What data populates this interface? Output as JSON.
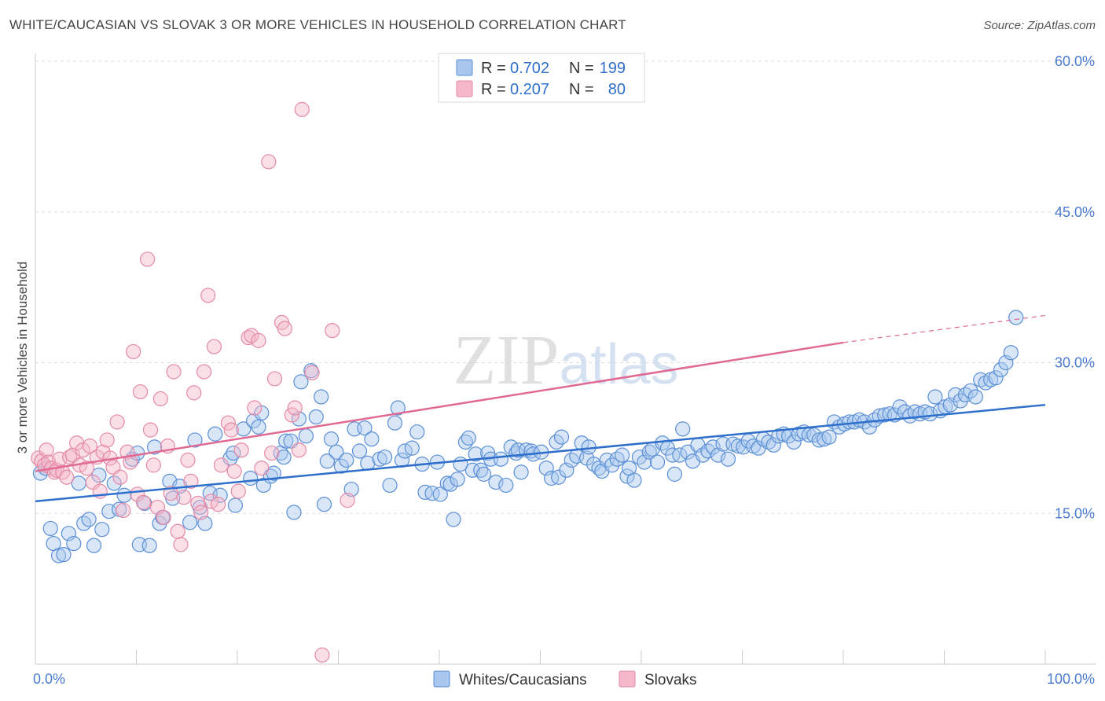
{
  "header": {
    "title": "WHITE/CAUCASIAN VS SLOVAK 3 OR MORE VEHICLES IN HOUSEHOLD CORRELATION CHART",
    "source": "Source: ZipAtlas.com"
  },
  "chart_data": {
    "type": "scatter",
    "title": "WHITE/CAUCASIAN VS SLOVAK 3 OR MORE VEHICLES IN HOUSEHOLD CORRELATION CHART",
    "ylabel": "3 or more Vehicles in Household",
    "xlabel": "",
    "xlim": [
      0,
      100
    ],
    "ylim": [
      0,
      60
    ],
    "x_ticks": [
      "0.0%",
      "100.0%"
    ],
    "y_ticks": [
      {
        "value": 15,
        "label": "15.0%"
      },
      {
        "value": 30,
        "label": "30.0%"
      },
      {
        "value": 45,
        "label": "45.0%"
      },
      {
        "value": 60,
        "label": "60.0%"
      }
    ],
    "grid": true,
    "legend_position": "top-center",
    "watermark": "ZIPatlas",
    "colors": {
      "blue_fill": "#a9c7ee",
      "blue_stroke": "#5b8fd6",
      "blue_line": "#2f6fcc",
      "pink_fill": "#f5b8ca",
      "pink_stroke": "#e48aa6",
      "pink_line": "#e06a94",
      "value_text": "#2f6fcc"
    },
    "legend": [
      {
        "name": "Whites/Caucasians",
        "r_label": "R =",
        "r": "0.702",
        "n_label": "N =",
        "n": "199"
      },
      {
        "name": "Slovaks",
        "r_label": "R =",
        "r": "0.207",
        "n_label": "N =",
        "n": "80"
      }
    ],
    "series": [
      {
        "name": "Whites/Caucasians",
        "trend": {
          "x0": 0,
          "y0": 16.2,
          "x1": 100,
          "y1": 25.8
        },
        "points": [
          [
            0.5,
            19
          ],
          [
            1,
            19.5
          ],
          [
            1.5,
            13.5
          ],
          [
            1.8,
            12
          ],
          [
            2.3,
            10.8
          ],
          [
            2.8,
            10.9
          ],
          [
            3.3,
            13
          ],
          [
            3.8,
            12
          ],
          [
            4.3,
            18
          ],
          [
            4.8,
            14
          ],
          [
            5.3,
            14.4
          ],
          [
            5.8,
            11.8
          ],
          [
            6.3,
            18.8
          ],
          [
            6.6,
            13.4
          ],
          [
            7.3,
            15.2
          ],
          [
            7.8,
            18
          ],
          [
            8.3,
            15.4
          ],
          [
            8.8,
            16.8
          ],
          [
            9.6,
            20.4
          ],
          [
            10.1,
            21
          ],
          [
            10.3,
            11.9
          ],
          [
            10.8,
            16
          ],
          [
            11.3,
            11.8
          ],
          [
            11.8,
            21.6
          ],
          [
            12.3,
            14
          ],
          [
            12.6,
            14.6
          ],
          [
            13.3,
            18.2
          ],
          [
            13.6,
            16.5
          ],
          [
            14.3,
            17.7
          ],
          [
            15.3,
            14.1
          ],
          [
            15.8,
            22.3
          ],
          [
            16.3,
            15.6
          ],
          [
            16.8,
            14
          ],
          [
            17.3,
            17
          ],
          [
            17.8,
            22.9
          ],
          [
            18.3,
            16.8
          ],
          [
            19.3,
            20.5
          ],
          [
            19.6,
            21
          ],
          [
            19.8,
            15.8
          ],
          [
            20.6,
            23.4
          ],
          [
            21.3,
            18.5
          ],
          [
            21.6,
            24.2
          ],
          [
            22.1,
            23.6
          ],
          [
            22.4,
            25
          ],
          [
            22.6,
            17.8
          ],
          [
            23.3,
            18.7
          ],
          [
            23.6,
            19
          ],
          [
            24.3,
            21
          ],
          [
            24.6,
            20.6
          ],
          [
            24.8,
            22.2
          ],
          [
            25.3,
            22.2
          ],
          [
            25.6,
            15.1
          ],
          [
            26.1,
            24.4
          ],
          [
            26.3,
            28.1
          ],
          [
            26.8,
            22.7
          ],
          [
            27.3,
            29.2
          ],
          [
            27.8,
            24.6
          ],
          [
            28.3,
            26.6
          ],
          [
            28.6,
            15.9
          ],
          [
            28.9,
            20.2
          ],
          [
            29.3,
            22.4
          ],
          [
            29.8,
            21.1
          ],
          [
            30.3,
            19.7
          ],
          [
            30.8,
            20.3
          ],
          [
            31.3,
            17.4
          ],
          [
            31.6,
            23.4
          ],
          [
            32.1,
            21.2
          ],
          [
            32.6,
            23.5
          ],
          [
            32.9,
            20
          ],
          [
            33.3,
            22.4
          ],
          [
            34.1,
            20.4
          ],
          [
            34.6,
            20.6
          ],
          [
            35.1,
            17.8
          ],
          [
            35.6,
            24
          ],
          [
            35.9,
            25.5
          ],
          [
            36.3,
            20.3
          ],
          [
            36.6,
            21.2
          ],
          [
            37.3,
            21.5
          ],
          [
            37.8,
            23.1
          ],
          [
            38.3,
            19.9
          ],
          [
            38.6,
            17.1
          ],
          [
            39.3,
            17
          ],
          [
            39.8,
            20.1
          ],
          [
            40.1,
            16.9
          ],
          [
            40.8,
            18
          ],
          [
            41.1,
            17.9
          ],
          [
            41.4,
            14.4
          ],
          [
            41.8,
            18.4
          ],
          [
            42.1,
            19.9
          ],
          [
            42.6,
            22.1
          ],
          [
            42.9,
            22.5
          ],
          [
            43.3,
            19.3
          ],
          [
            43.6,
            20.9
          ],
          [
            44.1,
            19.3
          ],
          [
            44.4,
            18.9
          ],
          [
            44.8,
            21
          ],
          [
            45.1,
            20.4
          ],
          [
            45.6,
            18.1
          ],
          [
            46.1,
            20.4
          ],
          [
            46.6,
            17.8
          ],
          [
            47.1,
            21.6
          ],
          [
            47.6,
            21
          ],
          [
            47.8,
            21.3
          ],
          [
            48.1,
            19.1
          ],
          [
            48.6,
            21.3
          ],
          [
            49.1,
            21.2
          ],
          [
            49.3,
            20.9
          ],
          [
            50.1,
            21.1
          ],
          [
            50.6,
            19.5
          ],
          [
            51.1,
            18.5
          ],
          [
            51.6,
            22.1
          ],
          [
            51.8,
            18.6
          ],
          [
            52.1,
            22.6
          ],
          [
            52.6,
            19.3
          ],
          [
            53.1,
            20.3
          ],
          [
            53.6,
            20.7
          ],
          [
            54.1,
            22
          ],
          [
            54.6,
            20.5
          ],
          [
            54.8,
            21.6
          ],
          [
            55.3,
            19.9
          ],
          [
            55.8,
            19.5
          ],
          [
            56.1,
            19.2
          ],
          [
            56.6,
            20.3
          ],
          [
            57.1,
            19.8
          ],
          [
            57.6,
            20.4
          ],
          [
            58.1,
            20.8
          ],
          [
            58.6,
            18.7
          ],
          [
            58.8,
            19.5
          ],
          [
            59.3,
            18.3
          ],
          [
            59.8,
            20.6
          ],
          [
            60.3,
            20.1
          ],
          [
            60.8,
            21.1
          ],
          [
            61.1,
            21.4
          ],
          [
            61.6,
            20.1
          ],
          [
            62.1,
            22
          ],
          [
            62.6,
            21.5
          ],
          [
            63.1,
            20.8
          ],
          [
            63.3,
            18.9
          ],
          [
            63.8,
            20.8
          ],
          [
            64.1,
            23.4
          ],
          [
            64.6,
            21.1
          ],
          [
            65.1,
            20.2
          ],
          [
            65.6,
            21.8
          ],
          [
            66.1,
            20.8
          ],
          [
            66.6,
            21.2
          ],
          [
            67.1,
            21.6
          ],
          [
            67.6,
            20.8
          ],
          [
            68.1,
            21.9
          ],
          [
            68.6,
            20.4
          ],
          [
            69.1,
            21.9
          ],
          [
            69.6,
            21.7
          ],
          [
            70.1,
            21.6
          ],
          [
            70.6,
            22.2
          ],
          [
            71.1,
            21.7
          ],
          [
            71.6,
            21.5
          ],
          [
            72.1,
            22.4
          ],
          [
            72.6,
            22.1
          ],
          [
            73.1,
            21.8
          ],
          [
            73.6,
            22.7
          ],
          [
            74.1,
            22.9
          ],
          [
            74.6,
            22.7
          ],
          [
            75.1,
            22.1
          ],
          [
            75.6,
            22.9
          ],
          [
            76.1,
            23.1
          ],
          [
            76.6,
            22.8
          ],
          [
            77.1,
            22.8
          ],
          [
            77.6,
            22.3
          ],
          [
            78.1,
            22.4
          ],
          [
            78.6,
            22.6
          ],
          [
            79.1,
            24.1
          ],
          [
            79.6,
            23.6
          ],
          [
            80.1,
            23.9
          ],
          [
            80.6,
            24.1
          ],
          [
            81.1,
            24.1
          ],
          [
            81.6,
            24.3
          ],
          [
            82.1,
            24.1
          ],
          [
            82.6,
            23.6
          ],
          [
            83.1,
            24.3
          ],
          [
            83.6,
            24.7
          ],
          [
            84.1,
            24.8
          ],
          [
            84.6,
            24.9
          ],
          [
            85.1,
            24.8
          ],
          [
            85.6,
            25.6
          ],
          [
            86.1,
            25.1
          ],
          [
            86.6,
            24.7
          ],
          [
            87.1,
            25.1
          ],
          [
            87.6,
            24.9
          ],
          [
            88.1,
            25.1
          ],
          [
            88.6,
            24.9
          ],
          [
            89.1,
            26.6
          ],
          [
            89.6,
            25.2
          ],
          [
            90.1,
            25.6
          ],
          [
            90.6,
            25.8
          ],
          [
            91.1,
            26.8
          ],
          [
            91.6,
            26.2
          ],
          [
            92.1,
            26.8
          ],
          [
            92.6,
            27.2
          ],
          [
            93.1,
            26.6
          ],
          [
            93.6,
            28.3
          ],
          [
            94.1,
            28
          ],
          [
            94.6,
            28.3
          ],
          [
            95.1,
            28.5
          ],
          [
            95.6,
            29.3
          ],
          [
            96.1,
            30
          ],
          [
            96.6,
            31
          ],
          [
            97.1,
            34.5
          ]
        ]
      },
      {
        "name": "Slovaks",
        "trend": {
          "x0": 0,
          "y0": 19.2,
          "x1": 80,
          "y1": 32,
          "x_dashed_end": 100,
          "y_dashed_end": 34.7
        },
        "points": [
          [
            0.3,
            20.5
          ],
          [
            0.6,
            20.2
          ],
          [
            0.9,
            19.8
          ],
          [
            1.1,
            21.3
          ],
          [
            1.3,
            20.1
          ],
          [
            1.6,
            19.5
          ],
          [
            1.9,
            19.1
          ],
          [
            2.1,
            19.3
          ],
          [
            2.4,
            20.4
          ],
          [
            2.7,
            19.1
          ],
          [
            3.1,
            18.6
          ],
          [
            3.4,
            20.6
          ],
          [
            3.7,
            20.8
          ],
          [
            4.1,
            22
          ],
          [
            4.4,
            19.8
          ],
          [
            4.7,
            21.3
          ],
          [
            5.1,
            19.5
          ],
          [
            5.4,
            21.7
          ],
          [
            5.7,
            18.1
          ],
          [
            6.1,
            20.6
          ],
          [
            6.4,
            17.2
          ],
          [
            6.7,
            21.1
          ],
          [
            7.1,
            22.3
          ],
          [
            7.4,
            20.5
          ],
          [
            7.7,
            19.6
          ],
          [
            8.1,
            24.1
          ],
          [
            8.4,
            18.6
          ],
          [
            8.7,
            15.3
          ],
          [
            9.1,
            21.1
          ],
          [
            9.4,
            20.1
          ],
          [
            9.7,
            31.1
          ],
          [
            10.1,
            16.9
          ],
          [
            10.4,
            27.1
          ],
          [
            10.7,
            16.1
          ],
          [
            11.1,
            40.3
          ],
          [
            11.4,
            23.3
          ],
          [
            11.7,
            19.8
          ],
          [
            12.1,
            15.6
          ],
          [
            12.4,
            26.4
          ],
          [
            12.7,
            14.6
          ],
          [
            13.1,
            21.7
          ],
          [
            13.4,
            17
          ],
          [
            13.7,
            29.1
          ],
          [
            14.1,
            13.2
          ],
          [
            14.4,
            11.9
          ],
          [
            14.7,
            16.6
          ],
          [
            15.1,
            20.3
          ],
          [
            15.4,
            18.2
          ],
          [
            15.7,
            27
          ],
          [
            16.1,
            16
          ],
          [
            16.4,
            15.1
          ],
          [
            16.7,
            29.1
          ],
          [
            17.1,
            36.7
          ],
          [
            17.4,
            16.2
          ],
          [
            17.7,
            31.6
          ],
          [
            18.1,
            15.9
          ],
          [
            18.4,
            19.8
          ],
          [
            19.1,
            24
          ],
          [
            19.4,
            23.3
          ],
          [
            19.7,
            19.2
          ],
          [
            20.1,
            17.2
          ],
          [
            20.4,
            21.3
          ],
          [
            21.1,
            32.5
          ],
          [
            21.4,
            32.7
          ],
          [
            21.7,
            25.5
          ],
          [
            22.1,
            32.2
          ],
          [
            22.4,
            19.5
          ],
          [
            23.1,
            50
          ],
          [
            23.4,
            21
          ],
          [
            23.7,
            28.4
          ],
          [
            24.4,
            34
          ],
          [
            24.7,
            33.4
          ],
          [
            25.4,
            24.8
          ],
          [
            25.7,
            25.5
          ],
          [
            26.1,
            21.3
          ],
          [
            26.4,
            55.2
          ],
          [
            27.4,
            29
          ],
          [
            28.4,
            0.9
          ],
          [
            29.4,
            33.2
          ],
          [
            30.9,
            16.3
          ]
        ]
      }
    ]
  }
}
